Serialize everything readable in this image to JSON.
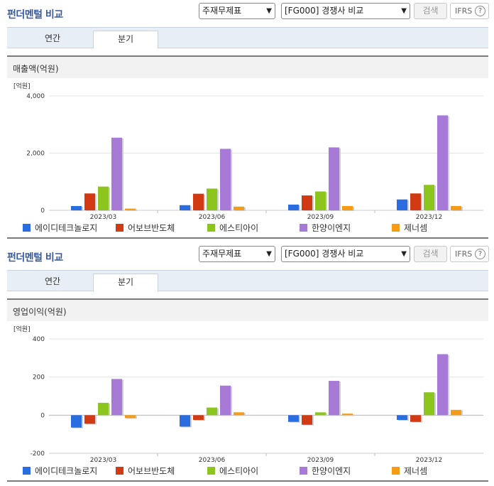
{
  "sections": [
    {
      "title": "펀더멘털 비교",
      "select_statement": "주재무제표",
      "select_compare": "[FG000] 경쟁사 비교",
      "search_label": "검색",
      "ifrs_label": "IFRS",
      "help_glyph": "?",
      "tabs": [
        {
          "label": "연간"
        },
        {
          "label": "분기"
        }
      ],
      "active_tab": 1,
      "chart_title": "매출액(억원)"
    },
    {
      "title": "펀더멘털 비교",
      "select_statement": "주재무제표",
      "select_compare": "[FG000] 경쟁사 비교",
      "search_label": "검색",
      "ifrs_label": "IFRS",
      "help_glyph": "?",
      "tabs": [
        {
          "label": "연간"
        },
        {
          "label": "분기"
        }
      ],
      "active_tab": 1,
      "chart_title": "영업이익(억원)"
    }
  ],
  "chart_data": [
    {
      "type": "bar",
      "title": "매출액(억원)",
      "unit_label": "[억원]",
      "categories": [
        "2023/03",
        "2023/06",
        "2023/09",
        "2023/12"
      ],
      "ylim": [
        0,
        4000
      ],
      "yticks": [
        0,
        2000,
        4000
      ],
      "ytick_labels": [
        "0",
        "2,000",
        "4,000"
      ],
      "series": [
        {
          "name": "에이디테크놀로지",
          "color": "#2a6de0",
          "values": [
            150,
            180,
            200,
            380
          ]
        },
        {
          "name": "어보브반도체",
          "color": "#d13a12",
          "values": [
            590,
            580,
            520,
            590
          ]
        },
        {
          "name": "에스티아이",
          "color": "#8cc51e",
          "values": [
            830,
            760,
            660,
            890
          ]
        },
        {
          "name": "한양이엔지",
          "color": "#a77ad8",
          "values": [
            2540,
            2150,
            2200,
            3320
          ]
        },
        {
          "name": "제너셈",
          "color": "#f59b16",
          "values": [
            60,
            130,
            150,
            150
          ]
        }
      ],
      "legend_position": "bottom",
      "grid": true
    },
    {
      "type": "bar",
      "title": "영업이익(억원)",
      "unit_label": "[억원]",
      "categories": [
        "2023/03",
        "2023/06",
        "2023/09",
        "2023/12"
      ],
      "ylim": [
        -200,
        400
      ],
      "yticks": [
        -200,
        0,
        200,
        400
      ],
      "ytick_labels": [
        "-200",
        "0",
        "200",
        "400"
      ],
      "series": [
        {
          "name": "에이디테크놀로지",
          "color": "#2a6de0",
          "values": [
            -65,
            -60,
            -35,
            -25
          ]
        },
        {
          "name": "어보브반도체",
          "color": "#d13a12",
          "values": [
            -45,
            -25,
            -50,
            -35
          ]
        },
        {
          "name": "에스티아이",
          "color": "#8cc51e",
          "values": [
            65,
            40,
            15,
            120
          ]
        },
        {
          "name": "한양이엔지",
          "color": "#a77ad8",
          "values": [
            190,
            155,
            180,
            320
          ]
        },
        {
          "name": "제너셈",
          "color": "#f59b16",
          "values": [
            -15,
            15,
            8,
            28
          ]
        }
      ],
      "legend_position": "bottom",
      "grid": true
    }
  ]
}
